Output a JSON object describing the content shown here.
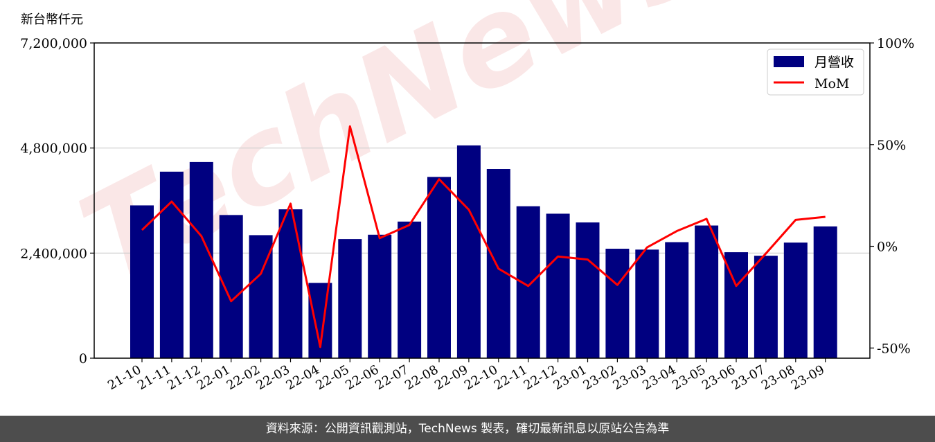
{
  "chart_data": {
    "type": "bar",
    "unit_label": "新台幣仟元",
    "categories": [
      "21-10",
      "21-11",
      "21-12",
      "22-01",
      "22-02",
      "22-03",
      "22-04",
      "22-05",
      "22-06",
      "22-07",
      "22-08",
      "22-09",
      "22-10",
      "22-11",
      "22-12",
      "23-01",
      "23-02",
      "23-03",
      "23-04",
      "23-05",
      "23-06",
      "23-07",
      "23-08",
      "23-09"
    ],
    "series": [
      {
        "name": "月營收",
        "kind": "bar",
        "axis": "left",
        "color": "#000080",
        "values": [
          3490000,
          4260000,
          4480000,
          3270000,
          2810000,
          3400000,
          1720000,
          2720000,
          2820000,
          3120000,
          4140000,
          4860000,
          4320000,
          3470000,
          3300000,
          3100000,
          2500000,
          2480000,
          2650000,
          3030000,
          2420000,
          2340000,
          2640000,
          3010000
        ]
      },
      {
        "name": "MoM",
        "kind": "line",
        "axis": "right",
        "color": "#ff0000",
        "values": [
          8,
          22,
          5,
          -27,
          -13.5,
          21,
          -49.5,
          59,
          4,
          10.5,
          33,
          18,
          -11,
          -19.5,
          -5,
          -6.5,
          -19,
          -0.5,
          7.5,
          13.5,
          -19.5,
          -3.5,
          13,
          14.5
        ]
      }
    ],
    "ylim_left": [
      0,
      7200000
    ],
    "yticks_left": [
      "0",
      "2,400,000",
      "4,800,000",
      "7,200,000"
    ],
    "ylim_right": [
      -55,
      100
    ],
    "yticks_right": [
      "-50%",
      "0%",
      "50%",
      "100%"
    ],
    "legend": "top-right",
    "grid": "horizontal"
  },
  "watermark": "TechNews",
  "footer": {
    "text": "資料來源：公開資訊觀測站，TechNews 製表，確切最新訊息以原站公告為準"
  }
}
